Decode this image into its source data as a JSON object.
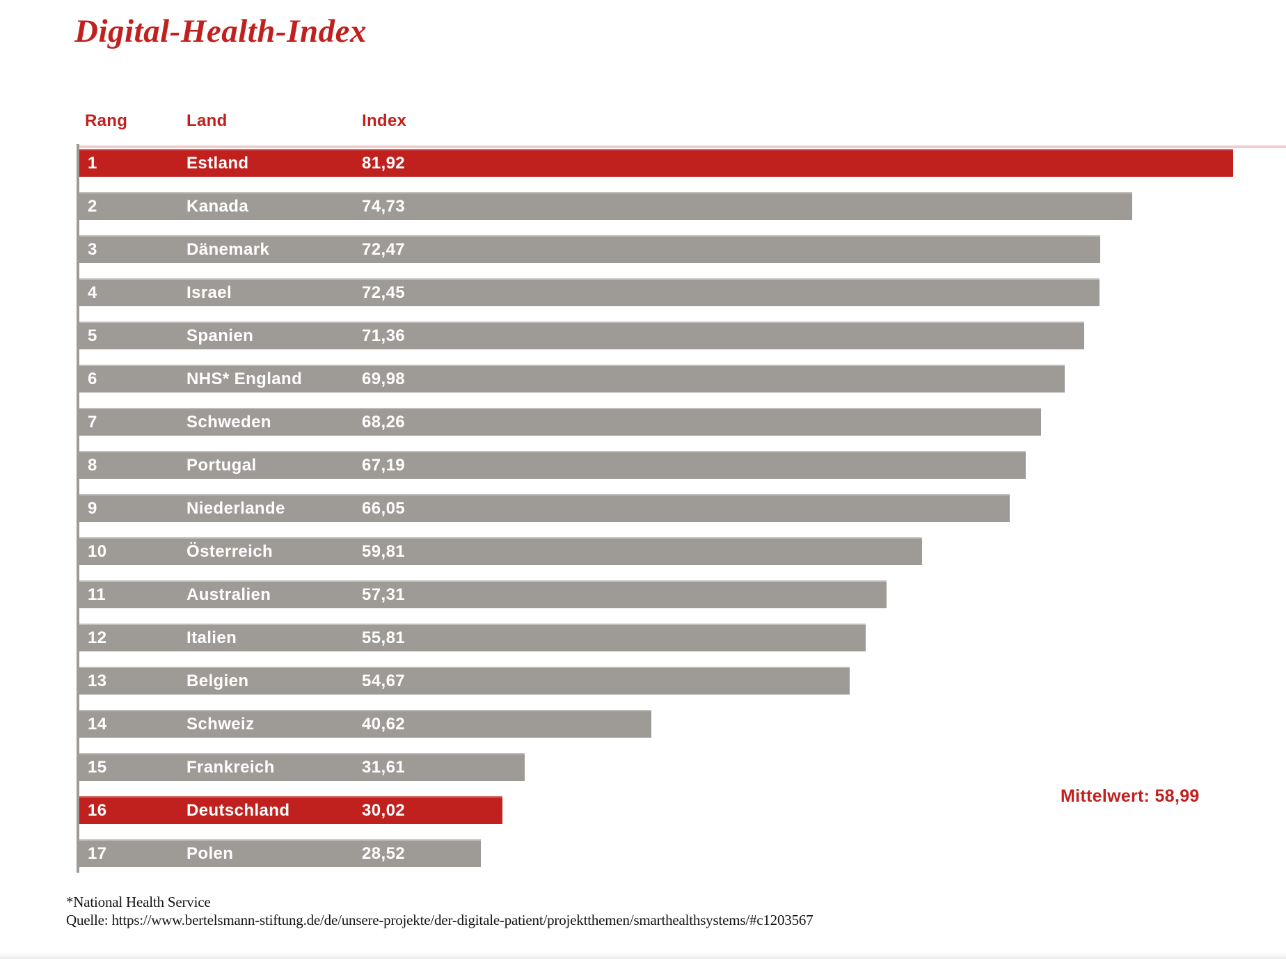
{
  "title": "Digital-Health-Index",
  "columns": {
    "rank": "Rang",
    "country": "Land",
    "index": "Index"
  },
  "rows": [
    {
      "rank": "1",
      "country": "Estland",
      "value": "81,92",
      "value_num": 81.92,
      "highlight": true
    },
    {
      "rank": "2",
      "country": "Kanada",
      "value": "74,73",
      "value_num": 74.73,
      "highlight": false
    },
    {
      "rank": "3",
      "country": "Dänemark",
      "value": "72,47",
      "value_num": 72.47,
      "highlight": false
    },
    {
      "rank": "4",
      "country": "Israel",
      "value": "72,45",
      "value_num": 72.45,
      "highlight": false
    },
    {
      "rank": "5",
      "country": "Spanien",
      "value": "71,36",
      "value_num": 71.36,
      "highlight": false
    },
    {
      "rank": "6",
      "country": "NHS* England",
      "value": "69,98",
      "value_num": 69.98,
      "highlight": false
    },
    {
      "rank": "7",
      "country": "Schweden",
      "value": "68,26",
      "value_num": 68.26,
      "highlight": false
    },
    {
      "rank": "8",
      "country": "Portugal",
      "value": "67,19",
      "value_num": 67.19,
      "highlight": false
    },
    {
      "rank": "9",
      "country": "Niederlande",
      "value": "66,05",
      "value_num": 66.05,
      "highlight": false
    },
    {
      "rank": "10",
      "country": "Österreich",
      "value": "59,81",
      "value_num": 59.81,
      "highlight": false
    },
    {
      "rank": "11",
      "country": "Australien",
      "value": "57,31",
      "value_num": 57.31,
      "highlight": false
    },
    {
      "rank": "12",
      "country": "Italien",
      "value": "55,81",
      "value_num": 55.81,
      "highlight": false
    },
    {
      "rank": "13",
      "country": "Belgien",
      "value": "54,67",
      "value_num": 54.67,
      "highlight": false
    },
    {
      "rank": "14",
      "country": "Schweiz",
      "value": "40,62",
      "value_num": 40.62,
      "highlight": false
    },
    {
      "rank": "15",
      "country": "Frankreich",
      "value": "31,61",
      "value_num": 31.61,
      "highlight": false
    },
    {
      "rank": "16",
      "country": "Deutschland",
      "value": "30,02",
      "value_num": 30.02,
      "highlight": true
    },
    {
      "rank": "17",
      "country": "Polen",
      "value": "28,52",
      "value_num": 28.52,
      "highlight": false
    }
  ],
  "mean_label": "Mittelwert: 58,99",
  "footnotes": [
    "*National Health Service",
    "Quelle: https://www.bertelsmann-stiftung.de/de/unsere-projekte/der-digitale-patient/projektthemen/smarthealthsystems/#c1203567"
  ],
  "colors": {
    "accent_red": "#c0211e",
    "bar_gray": "#9e9a96",
    "bar_text": "#ffffff",
    "footnote_text": "#141414"
  },
  "chart_data": {
    "type": "bar",
    "orientation": "horizontal",
    "title": "Digital-Health-Index",
    "categories": [
      "Estland",
      "Kanada",
      "Dänemark",
      "Israel",
      "Spanien",
      "NHS* England",
      "Schweden",
      "Portugal",
      "Niederlande",
      "Österreich",
      "Australien",
      "Italien",
      "Belgien",
      "Schweiz",
      "Frankreich",
      "Deutschland",
      "Polen"
    ],
    "ranks": [
      1,
      2,
      3,
      4,
      5,
      6,
      7,
      8,
      9,
      10,
      11,
      12,
      13,
      14,
      15,
      16,
      17
    ],
    "values": [
      81.92,
      74.73,
      72.47,
      72.45,
      71.36,
      69.98,
      68.26,
      67.19,
      66.05,
      59.81,
      57.31,
      55.81,
      54.67,
      40.62,
      31.61,
      30.02,
      28.52
    ],
    "value_labels": [
      "81,92",
      "74,73",
      "72,47",
      "72,45",
      "71,36",
      "69,98",
      "68,26",
      "67,19",
      "66,05",
      "59,81",
      "57,31",
      "55,81",
      "54,67",
      "40,62",
      "31,61",
      "30,02",
      "28,52"
    ],
    "highlighted_categories": [
      "Estland",
      "Deutschland"
    ],
    "highlight_color": "#c0211e",
    "default_color": "#9e9a96",
    "mean": 58.99,
    "mean_label": "Mittelwert: 58,99",
    "column_headers": [
      "Rang",
      "Land",
      "Index"
    ],
    "xlim": [
      0,
      82
    ],
    "grid": false,
    "legend": false,
    "value_labels_inside_bars": true
  }
}
